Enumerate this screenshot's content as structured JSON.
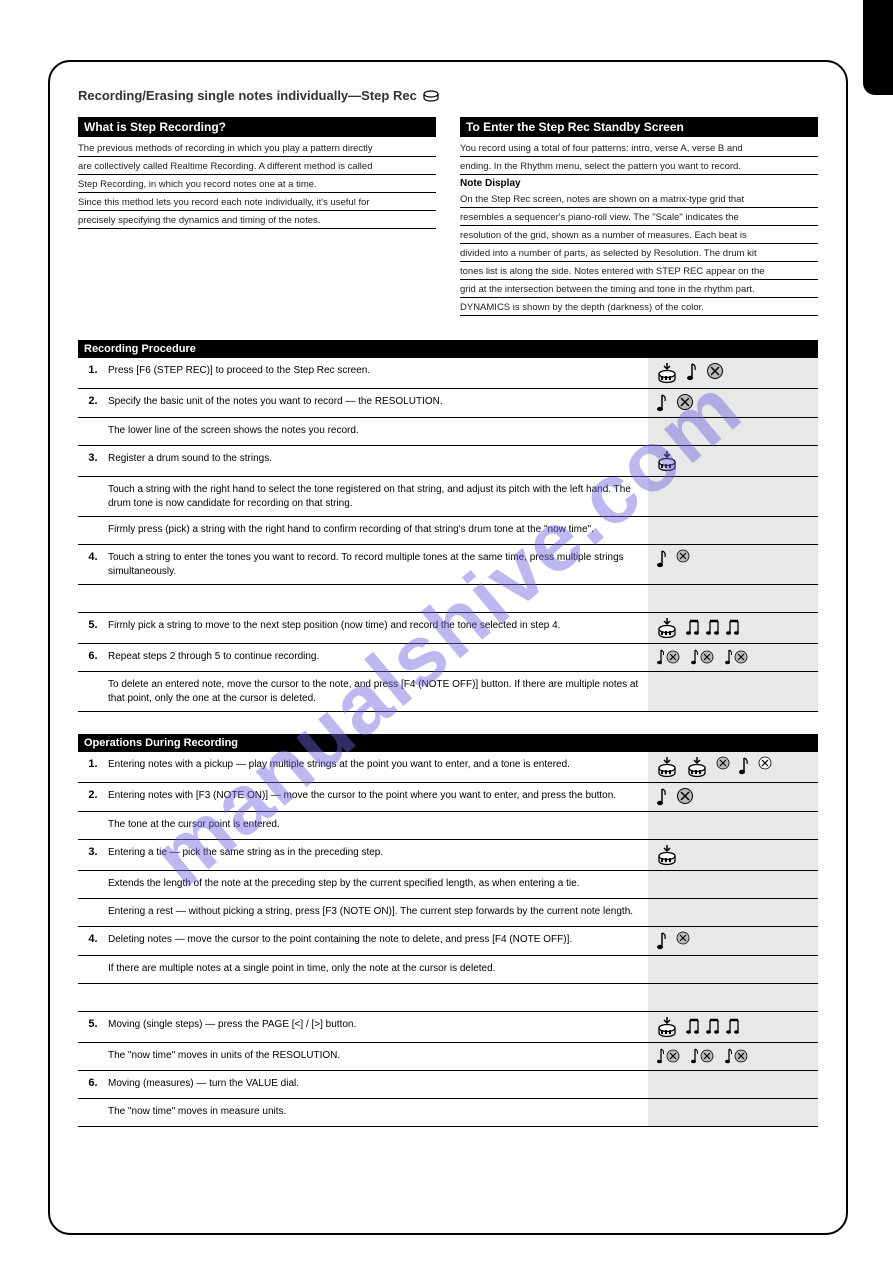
{
  "watermark": "manualshive.com",
  "page_title": "Recording/Erasing single notes individually—Step Rec",
  "title_icon": "drum-icon",
  "left_intro": {
    "heading": "What is Step Recording?",
    "lines": [
      "The previous methods of recording in which you play a pattern directly",
      "are collectively called Realtime Recording. A different method is called",
      "Step Recording, in which you record notes one at a time.",
      "Since this method lets you record each note individually, it's useful for",
      "precisely specifying the dynamics and timing of the notes."
    ]
  },
  "right_intro": {
    "heading": "To Enter the Step Rec Standby Screen",
    "lines": [
      "You record using a total of four patterns: intro, verse A, verse B and",
      "ending. In the Rhythm menu, select the pattern you want to record."
    ],
    "sub_label": "Note Display",
    "sub_lines": [
      "On the Step Rec screen, notes are shown on a matrix-type grid that",
      "resembles a sequencer's piano-roll view. The \"Scale\" indicates the",
      "resolution of the grid, shown as a number of measures. Each beat is",
      "divided into a number of parts, as selected by Resolution. The drum kit",
      "tones list is along the side. Notes entered with STEP REC appear on the",
      "grid at the intersection between the timing and tone in the rhythm part.",
      "DYNAMICS is shown by the depth (darkness) of the color."
    ]
  },
  "section1": {
    "heading": "Recording Procedure",
    "rows": [
      {
        "num": "1.",
        "text": "Press [F6 (STEP REC)] to proceed to the Step Rec screen.",
        "icons": [
          "drum-down",
          "note",
          "circle-x"
        ]
      },
      {
        "num": "2.",
        "text": "Specify the basic unit of the notes you want to record — the RESOLUTION.",
        "icons": [
          "note",
          "circle-x"
        ]
      },
      {
        "num": "",
        "text": "The lower line of the screen shows the notes you record.",
        "icons": []
      },
      {
        "num": "3.",
        "text": "Register a drum sound to the strings.",
        "icons": [
          "drum-down"
        ]
      },
      {
        "num": "",
        "text": "Touch a string with the right hand to select the tone registered on that string, and adjust its pitch with the left hand. The drum tone is now candidate for recording on that string.",
        "icons": []
      },
      {
        "num": "",
        "text": "Firmly press (pick) a string with the right hand to confirm recording of that string's drum tone at the \"now time\".",
        "icons": []
      },
      {
        "num": "4.",
        "text": "Touch a string to enter the tones you want to record. To record multiple tones at the same time, press multiple strings simultaneously.",
        "icons": [
          "note",
          "circle-x-small"
        ]
      },
      {
        "num": "",
        "text": "",
        "icons": []
      },
      {
        "num": "5.",
        "text": "Firmly pick a string to move to the next step position (now time) and record the tone selected in step 4.",
        "icons": [
          "drum-down",
          "notes-group"
        ]
      },
      {
        "num": "6.",
        "text": "Repeat steps 2 through 5 to continue recording.",
        "icons": [
          "note-x",
          "note-x",
          "note-x"
        ]
      },
      {
        "num": "",
        "text": "To delete an entered note, move the cursor to the note, and press [F4 (NOTE OFF)] button. If there are multiple notes at that point, only the one at the cursor is deleted.",
        "icons": []
      }
    ]
  },
  "section2": {
    "heading": "Operations During Recording",
    "rows": [
      {
        "num": "1.",
        "text": "Entering notes with a pickup — play multiple strings at the point you want to enter, and a tone is entered.",
        "icons": [
          "drum-down",
          "drum-down",
          "circle-x-small",
          "note",
          "circle-x-open"
        ]
      },
      {
        "num": "2.",
        "text": "Entering notes with [F3 (NOTE ON)] — move the cursor to the point where you want to enter, and press the button.",
        "icons": [
          "note",
          "circle-x"
        ]
      },
      {
        "num": "",
        "text": "The tone at the cursor point is entered.",
        "icons": []
      },
      {
        "num": "3.",
        "text": "Entering a tie — pick the same string as in the preceding step.",
        "icons": [
          "drum-down"
        ]
      },
      {
        "num": "",
        "text": "Extends the length of the note at the preceding step by the current specified length, as when entering a tie.",
        "icons": []
      },
      {
        "num": "",
        "text": "Entering a rest — without picking a string, press [F3 (NOTE ON)]. The current step forwards by the current note length.",
        "icons": []
      },
      {
        "num": "4.",
        "text": "Deleting notes — move the cursor to the point containing the note to delete, and press [F4 (NOTE OFF)].",
        "icons": [
          "note",
          "circle-x-small"
        ]
      },
      {
        "num": "",
        "text": "If there are multiple notes at a single point in time, only the note at the cursor is deleted.",
        "icons": []
      },
      {
        "num": "",
        "text": "",
        "icons": []
      },
      {
        "num": "5.",
        "text": "Moving (single steps) — press the PAGE [<] / [>] button.",
        "icons": [
          "drum-down",
          "notes-group"
        ]
      },
      {
        "num": "",
        "text": "The \"now time\" moves in units of the RESOLUTION.",
        "icons": [
          "note-x",
          "note-x",
          "note-x"
        ]
      },
      {
        "num": "6.",
        "text": "Moving (measures) — turn the VALUE dial.",
        "icons": []
      },
      {
        "num": "",
        "text": "The \"now time\" moves in measure units.",
        "icons": []
      }
    ]
  },
  "colors": {
    "black": "#000000",
    "icon_bg": "#e8e8e8",
    "watermark": "rgba(108,98,220,0.45)"
  }
}
